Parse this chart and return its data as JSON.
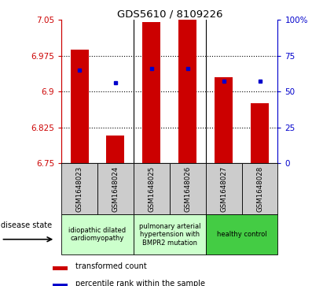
{
  "title": "GDS5610 / 8109226",
  "samples": [
    "GSM1648023",
    "GSM1648024",
    "GSM1648025",
    "GSM1648026",
    "GSM1648027",
    "GSM1648028"
  ],
  "bar_values": [
    6.988,
    6.808,
    7.045,
    7.05,
    6.93,
    6.875
  ],
  "dot_values": [
    6.945,
    6.918,
    6.948,
    6.948,
    6.922,
    6.922
  ],
  "ylim_left": [
    6.75,
    7.05
  ],
  "ylim_right": [
    0,
    100
  ],
  "yticks_left": [
    6.75,
    6.825,
    6.9,
    6.975,
    7.05
  ],
  "yticks_right": [
    0,
    25,
    50,
    75,
    100
  ],
  "ytick_right_labels": [
    "0",
    "25",
    "50",
    "75",
    "100%"
  ],
  "bar_color": "#cc0000",
  "dot_color": "#0000cc",
  "axis_left_color": "#cc0000",
  "axis_right_color": "#0000cc",
  "sample_box_color": "#cccccc",
  "groups": [
    {
      "label": "idiopathic dilated\ncardiomyopathy",
      "start": 0,
      "end": 2,
      "color": "#ccffcc"
    },
    {
      "label": "pulmonary arterial\nhypertension with\nBMPR2 mutation",
      "start": 2,
      "end": 4,
      "color": "#ccffcc"
    },
    {
      "label": "healthy control",
      "start": 4,
      "end": 6,
      "color": "#44cc44"
    }
  ],
  "legend_items": [
    {
      "label": "transformed count",
      "color": "#cc0000"
    },
    {
      "label": "percentile rank within the sample",
      "color": "#0000cc"
    }
  ],
  "disease_state_label": "disease state",
  "bar_width": 0.5
}
